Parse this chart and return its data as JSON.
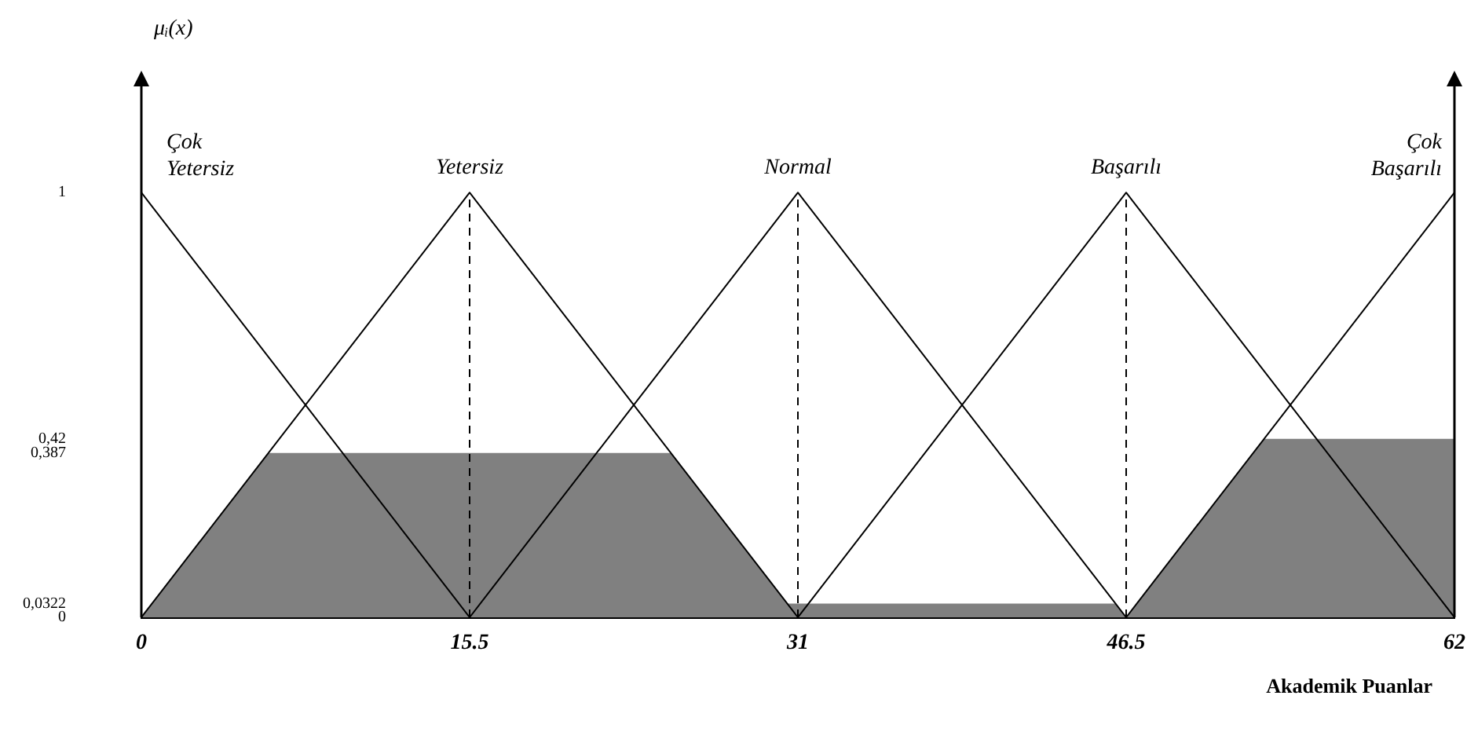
{
  "chart_data": {
    "type": "line",
    "ylabel": "μᵢ(x)",
    "xlabel": "Akademik Puanlar",
    "xlim": [
      0,
      62
    ],
    "ylim": [
      0,
      1.25
    ],
    "xticks": [
      0,
      15.5,
      31,
      46.5,
      62
    ],
    "yticks": [
      0,
      {
        "value": 0.0322,
        "label": "0,0322"
      },
      {
        "value": 0.387,
        "label": "0,387"
      },
      {
        "value": 0.42,
        "label": "0,42"
      },
      1
    ],
    "grid": false,
    "legend": false,
    "marker": "none",
    "series": [
      {
        "name": "Çok Yetersiz",
        "color": "#000000",
        "x": [
          0,
          15.5
        ],
        "values": [
          1,
          0
        ]
      },
      {
        "name": "Yetersiz",
        "color": "#000000",
        "x": [
          0,
          15.5,
          31
        ],
        "values": [
          0,
          1,
          0
        ]
      },
      {
        "name": "Normal",
        "color": "#000000",
        "x": [
          15.5,
          31,
          46.5
        ],
        "values": [
          0,
          1,
          0
        ]
      },
      {
        "name": "Başarılı",
        "color": "#000000",
        "x": [
          31,
          46.5,
          62
        ],
        "values": [
          0,
          1,
          0
        ]
      },
      {
        "name": "Çok Başarılı",
        "color": "#000000",
        "x": [
          46.5,
          62
        ],
        "values": [
          0,
          1
        ]
      },
      {
        "type": "area",
        "color": "#808080",
        "x": [
          0,
          6,
          25,
          30.5,
          46,
          46.5,
          53,
          62
        ],
        "values": [
          0,
          0.387,
          0.387,
          0.0322,
          0.0322,
          0,
          0.42,
          0.42
        ]
      }
    ],
    "ref_lines": [
      {
        "axis": "x",
        "value": 15.5,
        "line_style": "dashed"
      },
      {
        "axis": "x",
        "value": 31,
        "line_style": "dashed"
      },
      {
        "axis": "x",
        "value": 46.5,
        "line_style": "dashed"
      }
    ]
  }
}
